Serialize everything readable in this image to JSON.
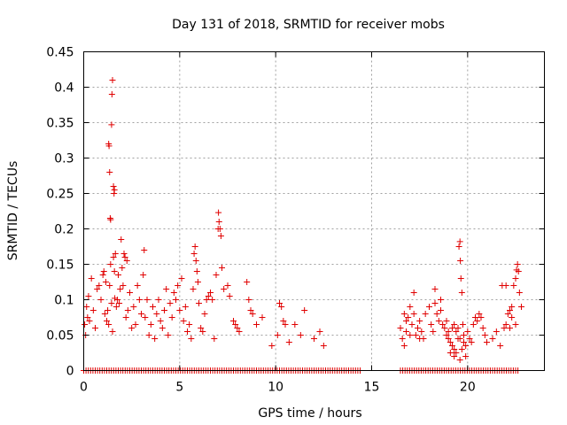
{
  "chart_data": {
    "type": "scatter",
    "title": "Day 131 of 2018, SRMTID for receiver mobs",
    "xlabel": "GPS time / hours",
    "ylabel": "SRMTID / TECUs",
    "xlim": [
      0,
      24
    ],
    "ylim": [
      0,
      0.45
    ],
    "xticks": [
      0,
      5,
      10,
      15,
      20
    ],
    "xtick_labels": [
      "0",
      "5",
      "10",
      "15",
      "20"
    ],
    "yticks": [
      0,
      0.05,
      0.1,
      0.15,
      0.2,
      0.25,
      0.3,
      0.35,
      0.4,
      0.45
    ],
    "ytick_labels": [
      "0",
      "0.05",
      "0.1",
      "0.15",
      "0.2",
      "0.25",
      "0.3",
      "0.35",
      "0.4",
      "0.45"
    ],
    "grid": true,
    "marker": "+",
    "color": "#e00000",
    "series": [
      {
        "name": "SRMTID",
        "points": [
          [
            0.05,
            0.065
          ],
          [
            0.1,
            0.05
          ],
          [
            0.15,
            0.09
          ],
          [
            0.2,
            0.075
          ],
          [
            0.25,
            0.105
          ],
          [
            0.3,
            0.07
          ],
          [
            0.4,
            0.13
          ],
          [
            0.5,
            0.085
          ],
          [
            0.6,
            0.06
          ],
          [
            0.7,
            0.115
          ],
          [
            0.8,
            0.12
          ],
          [
            0.9,
            0.1
          ],
          [
            1.0,
            0.135
          ],
          [
            1.05,
            0.14
          ],
          [
            1.1,
            0.08
          ],
          [
            1.15,
            0.125
          ],
          [
            1.2,
            0.07
          ],
          [
            1.25,
            0.085
          ],
          [
            1.3,
            0.065
          ],
          [
            1.35,
            0.12
          ],
          [
            1.4,
            0.15
          ],
          [
            1.45,
            0.095
          ],
          [
            1.5,
            0.055
          ],
          [
            1.55,
            0.16
          ],
          [
            1.6,
            0.14
          ],
          [
            1.65,
            0.165
          ],
          [
            1.7,
            0.09
          ],
          [
            1.75,
            0.1
          ],
          [
            1.8,
            0.135
          ],
          [
            1.85,
            0.095
          ],
          [
            1.9,
            0.115
          ],
          [
            1.95,
            0.185
          ],
          [
            2.0,
            0.145
          ],
          [
            2.05,
            0.12
          ],
          [
            2.1,
            0.165
          ],
          [
            2.15,
            0.16
          ],
          [
            2.2,
            0.075
          ],
          [
            2.25,
            0.155
          ],
          [
            2.3,
            0.085
          ],
          [
            2.4,
            0.11
          ],
          [
            2.5,
            0.06
          ],
          [
            2.6,
            0.09
          ],
          [
            2.7,
            0.065
          ],
          [
            2.8,
            0.12
          ],
          [
            2.9,
            0.1
          ],
          [
            3.0,
            0.08
          ],
          [
            3.1,
            0.135
          ],
          [
            3.15,
            0.17
          ],
          [
            3.2,
            0.075
          ],
          [
            3.3,
            0.1
          ],
          [
            3.4,
            0.05
          ],
          [
            3.5,
            0.065
          ],
          [
            3.6,
            0.09
          ],
          [
            3.7,
            0.045
          ],
          [
            3.8,
            0.08
          ],
          [
            3.9,
            0.1
          ],
          [
            4.0,
            0.07
          ],
          [
            4.1,
            0.06
          ],
          [
            4.2,
            0.085
          ],
          [
            4.3,
            0.115
          ],
          [
            4.4,
            0.05
          ],
          [
            4.5,
            0.095
          ],
          [
            4.6,
            0.075
          ],
          [
            4.7,
            0.11
          ],
          [
            4.8,
            0.1
          ],
          [
            4.9,
            0.12
          ],
          [
            5.0,
            0.085
          ],
          [
            5.1,
            0.13
          ],
          [
            5.2,
            0.07
          ],
          [
            5.3,
            0.09
          ],
          [
            5.4,
            0.055
          ],
          [
            5.5,
            0.065
          ],
          [
            5.6,
            0.045
          ],
          [
            5.7,
            0.115
          ],
          [
            5.75,
            0.165
          ],
          [
            5.8,
            0.175
          ],
          [
            5.85,
            0.155
          ],
          [
            5.9,
            0.14
          ],
          [
            5.95,
            0.125
          ],
          [
            6.0,
            0.095
          ],
          [
            6.1,
            0.06
          ],
          [
            6.2,
            0.055
          ],
          [
            6.3,
            0.08
          ],
          [
            6.4,
            0.1
          ],
          [
            6.5,
            0.105
          ],
          [
            6.6,
            0.11
          ],
          [
            6.7,
            0.1
          ],
          [
            6.8,
            0.045
          ],
          [
            6.9,
            0.135
          ],
          [
            7.0,
            0.2
          ],
          [
            7.02,
            0.223
          ],
          [
            7.05,
            0.21
          ],
          [
            7.1,
            0.2
          ],
          [
            7.15,
            0.19
          ],
          [
            7.2,
            0.145
          ],
          [
            7.3,
            0.115
          ],
          [
            7.5,
            0.12
          ],
          [
            7.6,
            0.105
          ],
          [
            7.8,
            0.07
          ],
          [
            7.9,
            0.065
          ],
          [
            8.0,
            0.06
          ],
          [
            8.1,
            0.055
          ],
          [
            8.5,
            0.125
          ],
          [
            8.6,
            0.1
          ],
          [
            8.7,
            0.085
          ],
          [
            8.8,
            0.08
          ],
          [
            9.0,
            0.065
          ],
          [
            9.3,
            0.075
          ],
          [
            9.8,
            0.035
          ],
          [
            10.1,
            0.05
          ],
          [
            10.2,
            0.095
          ],
          [
            10.3,
            0.09
          ],
          [
            10.4,
            0.07
          ],
          [
            10.5,
            0.065
          ],
          [
            10.7,
            0.04
          ],
          [
            11.0,
            0.065
          ],
          [
            11.3,
            0.05
          ],
          [
            11.5,
            0.085
          ],
          [
            12.0,
            0.045
          ],
          [
            12.3,
            0.055
          ],
          [
            12.5,
            0.035
          ],
          [
            1.3,
            0.32
          ],
          [
            1.32,
            0.317
          ],
          [
            1.35,
            0.28
          ],
          [
            1.38,
            0.215
          ],
          [
            1.4,
            0.213
          ],
          [
            1.45,
            0.347
          ],
          [
            1.47,
            0.39
          ],
          [
            1.5,
            0.41
          ],
          [
            1.55,
            0.26
          ],
          [
            1.58,
            0.25
          ],
          [
            1.6,
            0.255
          ],
          [
            1.62,
            0.102
          ],
          [
            16.5,
            0.06
          ],
          [
            16.6,
            0.045
          ],
          [
            16.7,
            0.035
          ],
          [
            16.8,
            0.055
          ],
          [
            16.9,
            0.075
          ],
          [
            17.0,
            0.09
          ],
          [
            17.1,
            0.065
          ],
          [
            17.2,
            0.11
          ],
          [
            17.3,
            0.05
          ],
          [
            17.4,
            0.06
          ],
          [
            17.5,
            0.07
          ],
          [
            17.6,
            0.055
          ],
          [
            17.7,
            0.045
          ],
          [
            17.8,
            0.08
          ],
          [
            18.0,
            0.09
          ],
          [
            18.1,
            0.065
          ],
          [
            18.2,
            0.055
          ],
          [
            18.3,
            0.095
          ],
          [
            18.4,
            0.08
          ],
          [
            18.5,
            0.07
          ],
          [
            18.6,
            0.085
          ],
          [
            18.7,
            0.065
          ],
          [
            18.8,
            0.06
          ],
          [
            18.9,
            0.05
          ],
          [
            19.0,
            0.045
          ],
          [
            19.1,
            0.04
          ],
          [
            19.2,
            0.035
          ],
          [
            19.3,
            0.03
          ],
          [
            19.4,
            0.025
          ],
          [
            19.5,
            0.045
          ],
          [
            19.55,
            0.175
          ],
          [
            19.6,
            0.182
          ],
          [
            19.62,
            0.155
          ],
          [
            19.65,
            0.13
          ],
          [
            19.7,
            0.11
          ],
          [
            19.75,
            0.065
          ],
          [
            19.8,
            0.05
          ],
          [
            19.9,
            0.035
          ],
          [
            20.0,
            0.055
          ],
          [
            20.1,
            0.045
          ],
          [
            20.2,
            0.04
          ],
          [
            20.3,
            0.065
          ],
          [
            20.4,
            0.075
          ],
          [
            20.5,
            0.07
          ],
          [
            20.6,
            0.08
          ],
          [
            20.7,
            0.075
          ],
          [
            20.8,
            0.06
          ],
          [
            20.9,
            0.05
          ],
          [
            21.0,
            0.04
          ],
          [
            21.3,
            0.045
          ],
          [
            21.5,
            0.055
          ],
          [
            21.7,
            0.035
          ],
          [
            21.9,
            0.06
          ],
          [
            22.0,
            0.065
          ],
          [
            22.1,
            0.08
          ],
          [
            22.2,
            0.085
          ],
          [
            22.3,
            0.09
          ],
          [
            22.4,
            0.12
          ],
          [
            22.5,
            0.13
          ],
          [
            22.55,
            0.142
          ],
          [
            22.6,
            0.15
          ],
          [
            22.65,
            0.14
          ],
          [
            22.7,
            0.11
          ],
          [
            22.8,
            0.09
          ],
          [
            22.5,
            0.065
          ],
          [
            22.3,
            0.075
          ],
          [
            22.2,
            0.06
          ],
          [
            21.8,
            0.12
          ],
          [
            22.0,
            0.12
          ],
          [
            18.3,
            0.115
          ],
          [
            18.6,
            0.1
          ],
          [
            16.7,
            0.08
          ],
          [
            16.8,
            0.07
          ],
          [
            17.0,
            0.05
          ],
          [
            17.2,
            0.08
          ],
          [
            17.5,
            0.045
          ],
          [
            18.9,
            0.07
          ],
          [
            19.2,
            0.06
          ],
          [
            19.4,
            0.055
          ],
          [
            19.6,
            0.045
          ],
          [
            19.8,
            0.04
          ],
          [
            19.0,
            0.055
          ],
          [
            19.3,
            0.065
          ],
          [
            19.5,
            0.06
          ],
          [
            19.7,
            0.03
          ],
          [
            19.1,
            0.025
          ],
          [
            19.3,
            0.02
          ],
          [
            19.6,
            0.015
          ],
          [
            19.9,
            0.02
          ]
        ],
        "zero_ranges": [
          [
            0,
            14.5
          ],
          [
            16.5,
            22.7
          ]
        ]
      }
    ]
  }
}
